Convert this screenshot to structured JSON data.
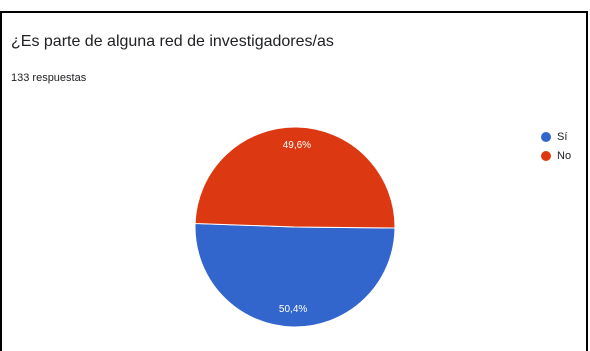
{
  "card": {
    "title": "¿Es parte de alguna red de investigadores/as",
    "subtitle": "133 respuestas"
  },
  "chart_data": {
    "type": "pie",
    "title": "¿Es parte de alguna red de investigadores/as",
    "subtitle": "133 respuestas",
    "categories": [
      "Sí",
      "No"
    ],
    "values": [
      50.4,
      49.6
    ],
    "value_labels": [
      "50,4%",
      "49,6%"
    ],
    "colors": [
      "#3366cc",
      "#dc3912"
    ],
    "legend_position": "right"
  }
}
